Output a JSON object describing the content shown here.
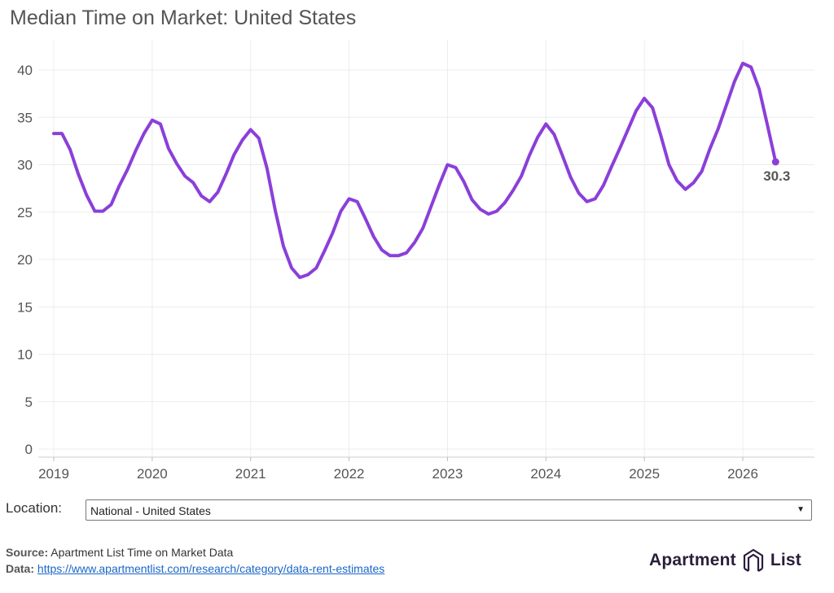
{
  "title": "Median Time on Market: United States",
  "location": {
    "label": "Location:",
    "selected": "National - United States"
  },
  "footer": {
    "source_label": "Source:",
    "source_text": "Apartment List Time on Market Data",
    "data_label": "Data:",
    "data_link": "https://www.apartmentlist.com/research/category/data-rent-estimates"
  },
  "brand": {
    "word1": "Apartment",
    "word2": "List"
  },
  "colors": {
    "line": "#8b3fd9",
    "grid": "#ececec",
    "text": "#555555",
    "brand": "#2b1d3a"
  },
  "chart_data": {
    "type": "line",
    "title": "Median Time on Market: United States",
    "xlabel": "",
    "ylabel": "",
    "ylim": [
      0,
      42
    ],
    "xlim": [
      2019,
      2026.7
    ],
    "x_ticks": [
      "2019",
      "2020",
      "2021",
      "2022",
      "2023",
      "2024",
      "2025",
      "2026"
    ],
    "y_ticks": [
      0,
      5,
      10,
      15,
      20,
      25,
      30,
      35,
      40
    ],
    "grid": true,
    "end_label": "30.3",
    "series": [
      {
        "name": "",
        "x": [
          "2019-01",
          "2019-02",
          "2019-03",
          "2019-04",
          "2019-05",
          "2019-06",
          "2019-07",
          "2019-08",
          "2019-09",
          "2019-10",
          "2019-11",
          "2019-12",
          "2020-01",
          "2020-02",
          "2020-03",
          "2020-04",
          "2020-05",
          "2020-06",
          "2020-07",
          "2020-08",
          "2020-09",
          "2020-10",
          "2020-11",
          "2020-12",
          "2021-01",
          "2021-02",
          "2021-03",
          "2021-04",
          "2021-05",
          "2021-06",
          "2021-07",
          "2021-08",
          "2021-09",
          "2021-10",
          "2021-11",
          "2021-12",
          "2022-01",
          "2022-02",
          "2022-03",
          "2022-04",
          "2022-05",
          "2022-06",
          "2022-07",
          "2022-08",
          "2022-09",
          "2022-10",
          "2022-11",
          "2022-12",
          "2023-01",
          "2023-02",
          "2023-03",
          "2023-04",
          "2023-05",
          "2023-06",
          "2023-07",
          "2023-08",
          "2023-09",
          "2023-10",
          "2023-11",
          "2023-12",
          "2024-01",
          "2024-02",
          "2024-03",
          "2024-04",
          "2024-05",
          "2024-06",
          "2024-07",
          "2024-08",
          "2024-09",
          "2024-10",
          "2024-11",
          "2024-12",
          "2025-01",
          "2025-02",
          "2025-03",
          "2025-04",
          "2025-05",
          "2025-06",
          "2025-07",
          "2025-08",
          "2025-09",
          "2025-10",
          "2025-11",
          "2025-12",
          "2026-01",
          "2026-02",
          "2026-03",
          "2026-04",
          "2026-05"
        ],
        "values": [
          33.3,
          33.3,
          31.6,
          29.0,
          26.8,
          25.1,
          25.1,
          25.8,
          27.8,
          29.5,
          31.5,
          33.3,
          34.7,
          34.3,
          31.7,
          30.1,
          28.8,
          28.1,
          26.7,
          26.1,
          27.1,
          29.0,
          31.1,
          32.6,
          33.7,
          32.8,
          29.6,
          25.2,
          21.4,
          19.1,
          18.1,
          18.4,
          19.1,
          20.9,
          22.8,
          25.1,
          26.4,
          26.1,
          24.3,
          22.4,
          21.0,
          20.4,
          20.4,
          20.7,
          21.8,
          23.3,
          25.6,
          27.9,
          30.0,
          29.7,
          28.2,
          26.3,
          25.3,
          24.8,
          25.1,
          26.0,
          27.3,
          28.8,
          31.0,
          32.9,
          34.3,
          33.2,
          31.0,
          28.7,
          27.0,
          26.1,
          26.4,
          27.8,
          29.8,
          31.7,
          33.7,
          35.7,
          37.0,
          36.0,
          33.1,
          30.0,
          28.3,
          27.4,
          28.1,
          29.3,
          31.7,
          33.8,
          36.3,
          38.8,
          40.7,
          40.3,
          38.0,
          34.2,
          30.3
        ]
      }
    ]
  }
}
